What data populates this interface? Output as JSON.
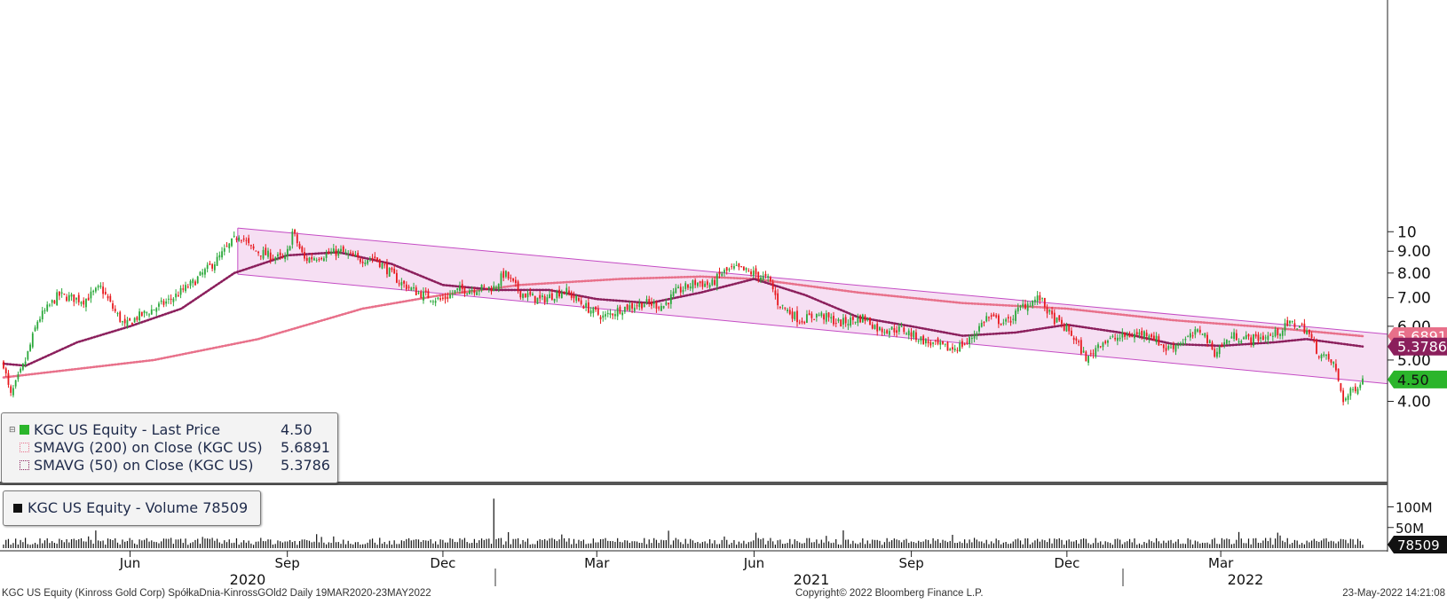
{
  "colors": {
    "up": "#2aa83a",
    "down": "#e8191d",
    "channel_fill": "#f6dff3",
    "channel_line": "#c44cc4",
    "sma200": "#e8708a",
    "sma50": "#8b1f5c",
    "last": "#2bb52b"
  },
  "legend": {
    "price": {
      "label": "KGC US Equity - Last Price",
      "value": "4.50"
    },
    "sma200": {
      "label": "SMAVG (200)  on Close (KGC US)",
      "value": "5.6891"
    },
    "sma50": {
      "label": "SMAVG (50)  on Close (KGC US)",
      "value": "5.3786"
    },
    "volume": {
      "label": "KGC US Equity - Volume 78509"
    }
  },
  "footer": {
    "left": "KGC US Equity (Kinross Gold Corp) SpółkaDnia-KinrossGOld2  Daily 19MAR2020-23MAY2022",
    "center": "Copyright© 2022 Bloomberg Finance L.P.",
    "right": "23-May-2022 14:21:08"
  },
  "chart_data": {
    "type": "candlestick",
    "price_axis": {
      "scale": "log",
      "ylim": [
        3.2,
        11.0
      ],
      "ticks": [
        "4.00",
        "5.00",
        "6.00",
        "7.00",
        "8.00",
        "9.00",
        "10"
      ]
    },
    "volume_axis": {
      "ticks": [
        "50M",
        "100M"
      ],
      "ylim": [
        0,
        125
      ]
    },
    "time_axis": {
      "months": [
        "Jun",
        "Sep",
        "Dec",
        "Mar",
        "Jun",
        "Sep",
        "Dec",
        "Mar"
      ],
      "years": [
        "2020",
        "2021",
        "2022"
      ]
    },
    "value_tags": [
      {
        "label": "5.6891",
        "series": "sma200"
      },
      {
        "label": "5.3786",
        "series": "sma50"
      },
      {
        "label": "4.50",
        "series": "last"
      }
    ],
    "close_path": [
      {
        "date": "2020-03-19",
        "close": 4.9
      },
      {
        "date": "2020-03-23",
        "close": 4.1
      },
      {
        "date": "2020-04-01",
        "close": 5.0
      },
      {
        "date": "2020-04-08",
        "close": 6.2
      },
      {
        "date": "2020-04-20",
        "close": 7.1
      },
      {
        "date": "2020-05-05",
        "close": 6.9
      },
      {
        "date": "2020-05-15",
        "close": 7.4
      },
      {
        "date": "2020-05-22",
        "close": 6.6
      },
      {
        "date": "2020-05-29",
        "close": 6.0
      },
      {
        "date": "2020-06-05",
        "close": 6.3
      },
      {
        "date": "2020-06-12",
        "close": 6.5
      },
      {
        "date": "2020-06-24",
        "close": 6.9
      },
      {
        "date": "2020-07-08",
        "close": 7.6
      },
      {
        "date": "2020-07-22",
        "close": 8.6
      },
      {
        "date": "2020-08-04",
        "close": 9.9
      },
      {
        "date": "2020-08-11",
        "close": 9.1
      },
      {
        "date": "2020-08-21",
        "close": 8.8
      },
      {
        "date": "2020-08-31",
        "close": 8.6
      },
      {
        "date": "2020-09-04",
        "close": 10.0
      },
      {
        "date": "2020-09-11",
        "close": 8.6
      },
      {
        "date": "2020-09-21",
        "close": 8.8
      },
      {
        "date": "2020-10-02",
        "close": 9.0
      },
      {
        "date": "2020-10-12",
        "close": 8.6
      },
      {
        "date": "2020-10-22",
        "close": 8.7
      },
      {
        "date": "2020-11-06",
        "close": 7.6
      },
      {
        "date": "2020-11-16",
        "close": 7.2
      },
      {
        "date": "2020-11-30",
        "close": 6.9
      },
      {
        "date": "2020-12-10",
        "close": 7.3
      },
      {
        "date": "2020-12-31",
        "close": 7.4
      },
      {
        "date": "2021-01-06",
        "close": 8.0
      },
      {
        "date": "2021-01-15",
        "close": 7.2
      },
      {
        "date": "2021-01-27",
        "close": 6.9
      },
      {
        "date": "2021-02-10",
        "close": 7.3
      },
      {
        "date": "2021-02-24",
        "close": 6.6
      },
      {
        "date": "2021-03-05",
        "close": 6.3
      },
      {
        "date": "2021-03-15",
        "close": 6.6
      },
      {
        "date": "2021-03-29",
        "close": 6.8
      },
      {
        "date": "2021-04-09",
        "close": 6.7
      },
      {
        "date": "2021-04-16",
        "close": 7.2
      },
      {
        "date": "2021-04-28",
        "close": 7.6
      },
      {
        "date": "2021-05-07",
        "close": 7.5
      },
      {
        "date": "2021-05-13",
        "close": 8.0
      },
      {
        "date": "2021-05-21",
        "close": 8.2
      },
      {
        "date": "2021-05-31",
        "close": 8.0
      },
      {
        "date": "2021-06-10",
        "close": 7.7
      },
      {
        "date": "2021-06-15",
        "close": 6.8
      },
      {
        "date": "2021-06-28",
        "close": 6.2
      },
      {
        "date": "2021-07-09",
        "close": 6.4
      },
      {
        "date": "2021-07-21",
        "close": 6.1
      },
      {
        "date": "2021-08-04",
        "close": 6.3
      },
      {
        "date": "2021-08-13",
        "close": 5.9
      },
      {
        "date": "2021-08-27",
        "close": 5.9
      },
      {
        "date": "2021-09-10",
        "close": 5.5
      },
      {
        "date": "2021-09-24",
        "close": 5.3
      },
      {
        "date": "2021-10-04",
        "close": 5.5
      },
      {
        "date": "2021-10-15",
        "close": 6.3
      },
      {
        "date": "2021-10-27",
        "close": 6.1
      },
      {
        "date": "2021-11-05",
        "close": 6.7
      },
      {
        "date": "2021-11-15",
        "close": 7.0
      },
      {
        "date": "2021-11-22",
        "close": 6.3
      },
      {
        "date": "2021-12-03",
        "close": 5.8
      },
      {
        "date": "2021-12-13",
        "close": 5.0
      },
      {
        "date": "2021-12-20",
        "close": 5.5
      },
      {
        "date": "2022-01-05",
        "close": 5.7
      },
      {
        "date": "2022-01-18",
        "close": 5.8
      },
      {
        "date": "2022-01-28",
        "close": 5.3
      },
      {
        "date": "2022-02-09",
        "close": 5.6
      },
      {
        "date": "2022-02-18",
        "close": 5.9
      },
      {
        "date": "2022-02-25",
        "close": 5.2
      },
      {
        "date": "2022-03-08",
        "close": 5.7
      },
      {
        "date": "2022-03-18",
        "close": 5.6
      },
      {
        "date": "2022-03-31",
        "close": 5.7
      },
      {
        "date": "2022-04-11",
        "close": 6.1
      },
      {
        "date": "2022-04-20",
        "close": 5.9
      },
      {
        "date": "2022-04-27",
        "close": 5.2
      },
      {
        "date": "2022-05-06",
        "close": 4.9
      },
      {
        "date": "2022-05-12",
        "close": 4.0
      },
      {
        "date": "2022-05-16",
        "close": 4.2
      },
      {
        "date": "2022-05-23",
        "close": 4.5
      }
    ],
    "sma200": [
      {
        "date": "2020-03-19",
        "value": 4.55
      },
      {
        "date": "2020-06-15",
        "value": 5.0
      },
      {
        "date": "2020-08-15",
        "value": 5.6
      },
      {
        "date": "2020-10-15",
        "value": 6.6
      },
      {
        "date": "2020-11-30",
        "value": 7.1
      },
      {
        "date": "2021-01-15",
        "value": 7.5
      },
      {
        "date": "2021-03-15",
        "value": 7.75
      },
      {
        "date": "2021-05-01",
        "value": 7.85
      },
      {
        "date": "2021-06-01",
        "value": 7.75
      },
      {
        "date": "2021-08-01",
        "value": 7.2
      },
      {
        "date": "2021-10-01",
        "value": 6.8
      },
      {
        "date": "2021-12-01",
        "value": 6.6
      },
      {
        "date": "2022-02-01",
        "value": 6.2
      },
      {
        "date": "2022-04-01",
        "value": 5.95
      },
      {
        "date": "2022-05-23",
        "value": 5.6891
      }
    ],
    "sma50": [
      {
        "date": "2020-03-19",
        "value": 4.9
      },
      {
        "date": "2020-04-01",
        "value": 4.85
      },
      {
        "date": "2020-05-01",
        "value": 5.5
      },
      {
        "date": "2020-06-01",
        "value": 6.0
      },
      {
        "date": "2020-07-01",
        "value": 6.6
      },
      {
        "date": "2020-08-01",
        "value": 8.0
      },
      {
        "date": "2020-09-01",
        "value": 8.8
      },
      {
        "date": "2020-10-01",
        "value": 8.95
      },
      {
        "date": "2020-11-01",
        "value": 8.4
      },
      {
        "date": "2020-12-01",
        "value": 7.5
      },
      {
        "date": "2021-01-01",
        "value": 7.3
      },
      {
        "date": "2021-02-01",
        "value": 7.3
      },
      {
        "date": "2021-03-01",
        "value": 6.95
      },
      {
        "date": "2021-04-01",
        "value": 6.8
      },
      {
        "date": "2021-05-01",
        "value": 7.2
      },
      {
        "date": "2021-06-01",
        "value": 7.75
      },
      {
        "date": "2021-07-01",
        "value": 7.1
      },
      {
        "date": "2021-08-01",
        "value": 6.3
      },
      {
        "date": "2021-09-01",
        "value": 6.0
      },
      {
        "date": "2021-10-01",
        "value": 5.7
      },
      {
        "date": "2021-11-01",
        "value": 5.8
      },
      {
        "date": "2021-12-01",
        "value": 6.05
      },
      {
        "date": "2022-01-01",
        "value": 5.8
      },
      {
        "date": "2022-02-01",
        "value": 5.45
      },
      {
        "date": "2022-03-01",
        "value": 5.4
      },
      {
        "date": "2022-04-01",
        "value": 5.5
      },
      {
        "date": "2022-04-20",
        "value": 5.6
      },
      {
        "date": "2022-05-23",
        "value": 5.3786
      }
    ],
    "channel": {
      "upper": [
        {
          "date": "2020-08-03",
          "value": 10.2
        },
        {
          "date": "2022-05-23",
          "value": 5.75
        }
      ],
      "lower": [
        {
          "date": "2020-08-03",
          "value": 7.95
        },
        {
          "date": "2022-05-23",
          "value": 4.4
        }
      ]
    },
    "volume": {
      "typical_M": [
        8,
        25
      ],
      "spikes": [
        {
          "date": "2020-12-31",
          "value_M": 120
        }
      ],
      "last": "78509"
    }
  }
}
